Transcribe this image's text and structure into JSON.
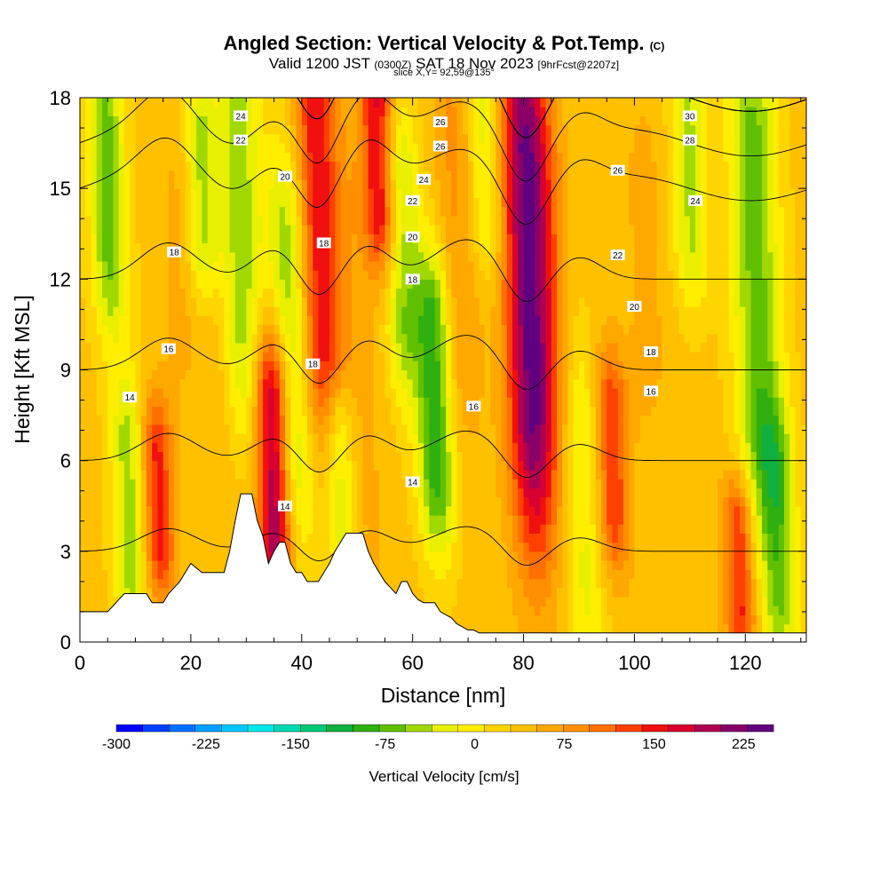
{
  "header": {
    "title": "Angled Section: Vertical Velocity & Pot.Temp.",
    "title_unit": "(C)",
    "valid_prefix": "Valid 1200 JST",
    "valid_zulu": "(0300Z)",
    "valid_date": "SAT 18 Nov 2023",
    "forecast_info": "[9hrFcst@2207z]",
    "slice_info": "slice X,Y= 92,59@135°"
  },
  "chart_data": {
    "type": "heatmap",
    "xlabel": "Distance [nm]",
    "ylabel": "Height [Kft MSL]",
    "xlim": [
      0,
      131
    ],
    "ylim": [
      0,
      18
    ],
    "x_ticks": [
      0,
      20,
      40,
      60,
      80,
      100,
      120
    ],
    "y_ticks": [
      0,
      3,
      6,
      9,
      12,
      15,
      18
    ],
    "grid": false,
    "colorbar": {
      "label": "Vertical Velocity [cm/s]",
      "placement": "bottom",
      "min": -300,
      "max": 250,
      "tick_labels": [
        -300,
        -225,
        -150,
        -75,
        0,
        75,
        150,
        225
      ],
      "colors": [
        "#0000ff",
        "#0040ff",
        "#0070ff",
        "#00a0ff",
        "#00c8ff",
        "#00e8e8",
        "#00d8b0",
        "#00c878",
        "#10b040",
        "#30b010",
        "#60c000",
        "#a0d800",
        "#e8f000",
        "#ffee00",
        "#ffd500",
        "#ffc000",
        "#ffa800",
        "#ff8f00",
        "#ff7000",
        "#ff4000",
        "#f01010",
        "#d80030",
        "#b00050",
        "#880068",
        "#600080"
      ]
    },
    "vertical_velocity_features": [
      {
        "x": 5,
        "peak": -65,
        "z_range": [
          12,
          18
        ]
      },
      {
        "x": 9,
        "peak": -50,
        "z_range": [
          2,
          7
        ]
      },
      {
        "x": 14,
        "peak": 150,
        "z_range": [
          3,
          6.5
        ]
      },
      {
        "x": 18,
        "peak": 60,
        "z_range": [
          10,
          15
        ]
      },
      {
        "x": 22,
        "peak": -40,
        "z_range": [
          13,
          17
        ]
      },
      {
        "x": 25,
        "peak": 55,
        "z_range": [
          6,
          11
        ]
      },
      {
        "x": 29,
        "peak": -50,
        "z_range": [
          9,
          18
        ]
      },
      {
        "x": 35,
        "peak": 225,
        "z_range": [
          3,
          8.5
        ]
      },
      {
        "x": 38,
        "peak": -60,
        "z_range": [
          5,
          14
        ]
      },
      {
        "x": 43,
        "peak": 160,
        "z_range": [
          9,
          18
        ]
      },
      {
        "x": 47,
        "peak": -45,
        "z_range": [
          4,
          7
        ]
      },
      {
        "x": 50,
        "peak": 60,
        "z_range": [
          2,
          16
        ]
      },
      {
        "x": 54,
        "peak": 170,
        "z_range": [
          14,
          18
        ]
      },
      {
        "x": 58,
        "peak": -50,
        "z_range": [
          10,
          16
        ]
      },
      {
        "x": 64,
        "peak": -95,
        "z_range": [
          5,
          11
        ]
      },
      {
        "x": 68,
        "peak": 80,
        "z_range": [
          9,
          18
        ]
      },
      {
        "x": 73,
        "peak": -30,
        "z_range": [
          14,
          18
        ]
      },
      {
        "x": 81,
        "peak": 235,
        "z_range": [
          6,
          18
        ]
      },
      {
        "x": 85,
        "peak": 60,
        "z_range": [
          9,
          15
        ]
      },
      {
        "x": 91,
        "peak": -20,
        "z_range": [
          1,
          8
        ]
      },
      {
        "x": 96,
        "peak": 140,
        "z_range": [
          4,
          8
        ]
      },
      {
        "x": 102,
        "peak": 60,
        "z_range": [
          9,
          16
        ]
      },
      {
        "x": 110,
        "peak": -40,
        "z_range": [
          13,
          18
        ]
      },
      {
        "x": 119,
        "peak": 150,
        "z_range": [
          1,
          4
        ]
      },
      {
        "x": 122,
        "peak": -70,
        "z_range": [
          6,
          18
        ]
      },
      {
        "x": 126,
        "peak": -50,
        "z_range": [
          1,
          6
        ]
      }
    ],
    "terrain": [
      [
        0,
        1
      ],
      [
        5,
        1
      ],
      [
        6,
        1.2
      ],
      [
        7,
        1.4
      ],
      [
        8,
        1.6
      ],
      [
        12,
        1.6
      ],
      [
        13,
        1.3
      ],
      [
        15,
        1.3
      ],
      [
        16,
        1.6
      ],
      [
        17,
        1.8
      ],
      [
        18,
        2
      ],
      [
        19,
        2.3
      ],
      [
        20,
        2.6
      ],
      [
        22,
        2.3
      ],
      [
        26,
        2.3
      ],
      [
        27,
        3
      ],
      [
        28,
        4
      ],
      [
        29,
        4.9
      ],
      [
        31,
        4.9
      ],
      [
        32,
        4
      ],
      [
        33,
        3.5
      ],
      [
        34,
        2.6
      ],
      [
        35,
        3
      ],
      [
        36,
        3.3
      ],
      [
        37,
        3.3
      ],
      [
        38,
        2.6
      ],
      [
        39,
        2.3
      ],
      [
        40,
        2.3
      ],
      [
        41,
        2
      ],
      [
        43,
        2
      ],
      [
        44,
        2.3
      ],
      [
        45,
        2.6
      ],
      [
        46,
        3
      ],
      [
        47,
        3.3
      ],
      [
        48,
        3.6
      ],
      [
        51,
        3.6
      ],
      [
        52,
        3
      ],
      [
        53,
        2.6
      ],
      [
        55,
        2
      ],
      [
        56,
        1.8
      ],
      [
        57,
        1.6
      ],
      [
        58,
        2
      ],
      [
        59,
        2
      ],
      [
        60,
        1.6
      ],
      [
        61,
        1.4
      ],
      [
        62,
        1.3
      ],
      [
        64,
        1.3
      ],
      [
        65,
        1
      ],
      [
        67,
        0.8
      ],
      [
        68,
        0.6
      ],
      [
        70,
        0.4
      ],
      [
        71,
        0.4
      ],
      [
        72,
        0.3
      ],
      [
        131,
        0.3
      ]
    ],
    "contour_step": 2,
    "theta_profile": [
      [
        0,
        10
      ],
      [
        3,
        12
      ],
      [
        6,
        14
      ],
      [
        9,
        16
      ],
      [
        12,
        18
      ],
      [
        15,
        20
      ],
      [
        18,
        24
      ]
    ],
    "contour_labels": [
      {
        "text": "14",
        "x": 9,
        "z": 8.1
      },
      {
        "text": "16",
        "x": 16,
        "z": 9.7
      },
      {
        "text": "18",
        "x": 17,
        "z": 12.9
      },
      {
        "text": "14",
        "x": 37,
        "z": 4.5
      },
      {
        "text": "18",
        "x": 42,
        "z": 9.2
      },
      {
        "text": "18",
        "x": 44,
        "z": 13.2
      },
      {
        "text": "20",
        "x": 37,
        "z": 15.4
      },
      {
        "text": "22",
        "x": 29,
        "z": 16.6
      },
      {
        "text": "24",
        "x": 29,
        "z": 17.4
      },
      {
        "text": "14",
        "x": 60,
        "z": 5.3
      },
      {
        "text": "18",
        "x": 60,
        "z": 12.0
      },
      {
        "text": "20",
        "x": 60,
        "z": 13.4
      },
      {
        "text": "22",
        "x": 60,
        "z": 14.6
      },
      {
        "text": "24",
        "x": 62,
        "z": 15.3
      },
      {
        "text": "26",
        "x": 65,
        "z": 16.4
      },
      {
        "text": "26",
        "x": 65,
        "z": 17.2
      },
      {
        "text": "16",
        "x": 71,
        "z": 7.8
      },
      {
        "text": "16",
        "x": 103,
        "z": 8.3
      },
      {
        "text": "18",
        "x": 103,
        "z": 9.6
      },
      {
        "text": "20",
        "x": 100,
        "z": 11.1
      },
      {
        "text": "22",
        "x": 97,
        "z": 12.8
      },
      {
        "text": "24",
        "x": 111,
        "z": 14.6
      },
      {
        "text": "26",
        "x": 97,
        "z": 15.6
      },
      {
        "text": "28",
        "x": 110,
        "z": 16.6
      },
      {
        "text": "30",
        "x": 110,
        "z": 17.4
      }
    ]
  }
}
